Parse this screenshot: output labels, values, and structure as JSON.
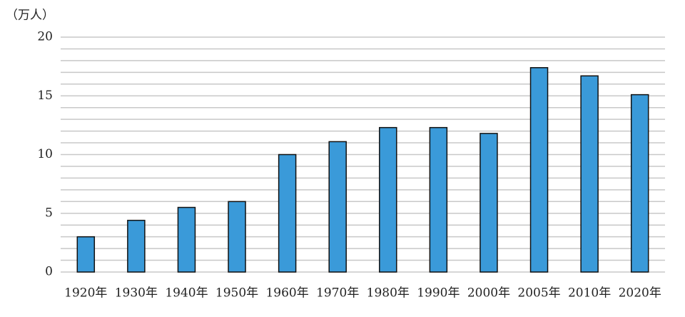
{
  "chart_data": {
    "type": "bar",
    "y_axis_label": "（万人）",
    "categories": [
      "1920年",
      "1930年",
      "1940年",
      "1950年",
      "1960年",
      "1970年",
      "1980年",
      "1990年",
      "2000年",
      "2005年",
      "2010年",
      "2020年"
    ],
    "values": [
      3.0,
      4.4,
      5.5,
      6.0,
      10.0,
      11.1,
      12.3,
      12.3,
      11.8,
      17.4,
      16.7,
      15.1
    ],
    "color": "#3a9ad9",
    "ylim": [
      0,
      20
    ],
    "yticks": [
      0,
      5,
      10,
      15,
      20
    ],
    "minor_yticks": [
      1,
      2,
      3,
      4,
      6,
      7,
      8,
      9,
      11,
      12,
      13,
      14,
      16,
      17,
      18,
      19
    ],
    "grid": true
  }
}
